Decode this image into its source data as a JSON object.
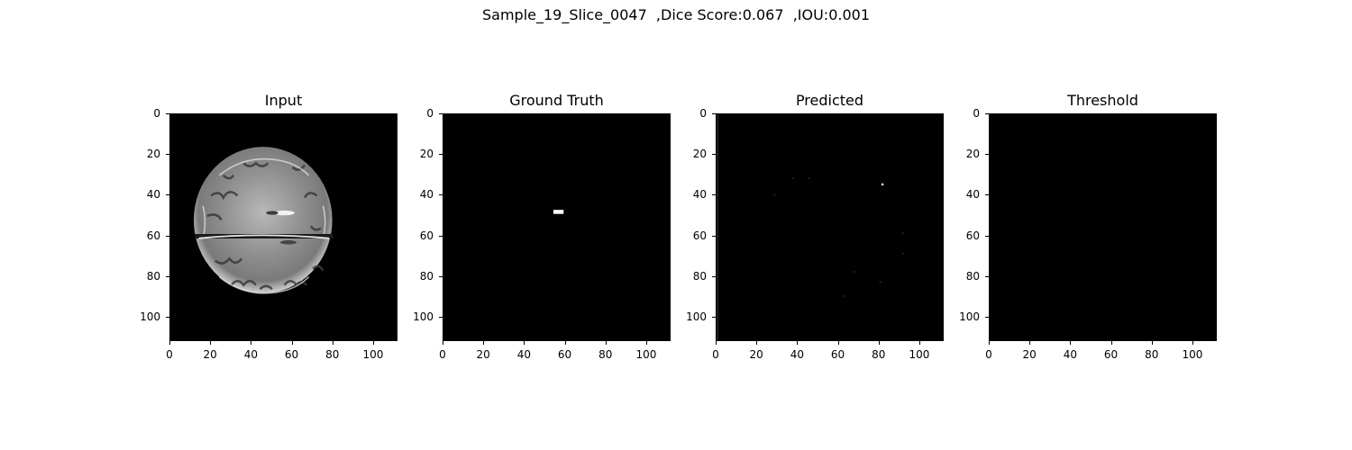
{
  "figure": {
    "suptitle": "Sample_19_Slice_0047  ,Dice Score:0.067  ,IOU:0.001"
  },
  "axis": {
    "range": [
      0,
      112
    ],
    "xticks": [
      "0",
      "20",
      "40",
      "60",
      "80",
      "100"
    ],
    "yticks": [
      "0",
      "20",
      "40",
      "60",
      "80",
      "100"
    ],
    "tick_values": [
      0,
      20,
      40,
      60,
      80,
      100
    ]
  },
  "panels": [
    {
      "title": "Input",
      "image": "brain-mri-slice"
    },
    {
      "title": "Ground Truth",
      "image": "binary-mask",
      "mask_region": {
        "x": [
          54,
          59
        ],
        "y": [
          47,
          49
        ]
      }
    },
    {
      "title": "Predicted",
      "image": "prediction-map",
      "bright_points": [
        {
          "x": 81,
          "y": 34
        }
      ]
    },
    {
      "title": "Threshold",
      "image": "empty-mask"
    }
  ]
}
